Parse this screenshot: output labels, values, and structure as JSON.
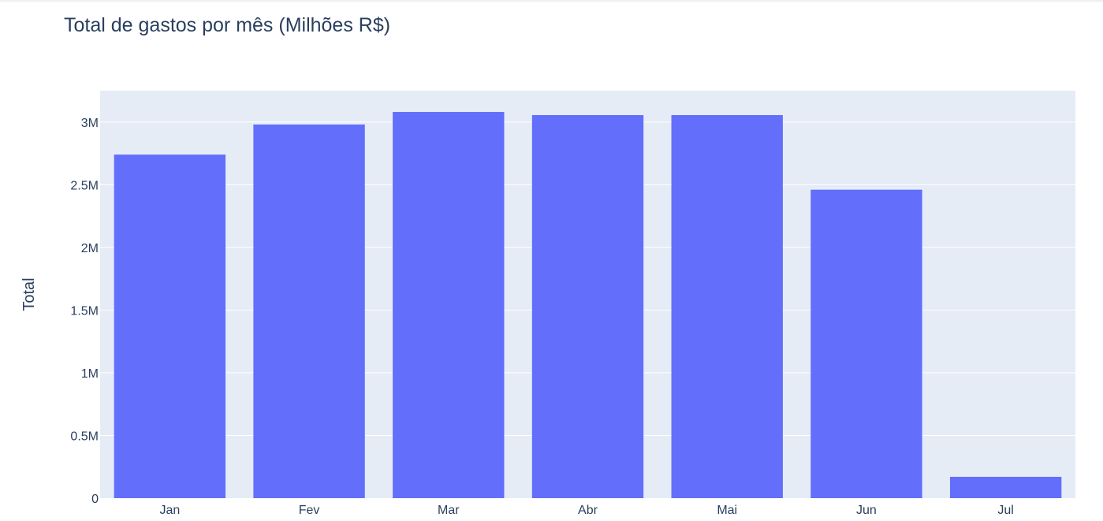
{
  "chart_data": {
    "type": "bar",
    "title": "Total de gastos por mês (Milhões R$)",
    "xlabel": "",
    "ylabel": "Total",
    "categories": [
      "Jan",
      "Fev",
      "Mar",
      "Abr",
      "Mai",
      "Jun",
      "Jul"
    ],
    "values": [
      2740000,
      2980000,
      3080000,
      3055000,
      3055000,
      2460000,
      170000
    ],
    "ylim": [
      0,
      3250000
    ],
    "yticks": [
      0,
      500000,
      1000000,
      1500000,
      2000000,
      2500000,
      3000000
    ],
    "ytick_labels": [
      "0",
      "0.5M",
      "1M",
      "1.5M",
      "2M",
      "2.5M",
      "3M"
    ],
    "grid": true,
    "colors": {
      "bar": "#636efa",
      "plot_background": "#e5ecf6",
      "grid": "#ffffff",
      "text": "#2a3f5f",
      "page_background": "#ffffff"
    }
  }
}
